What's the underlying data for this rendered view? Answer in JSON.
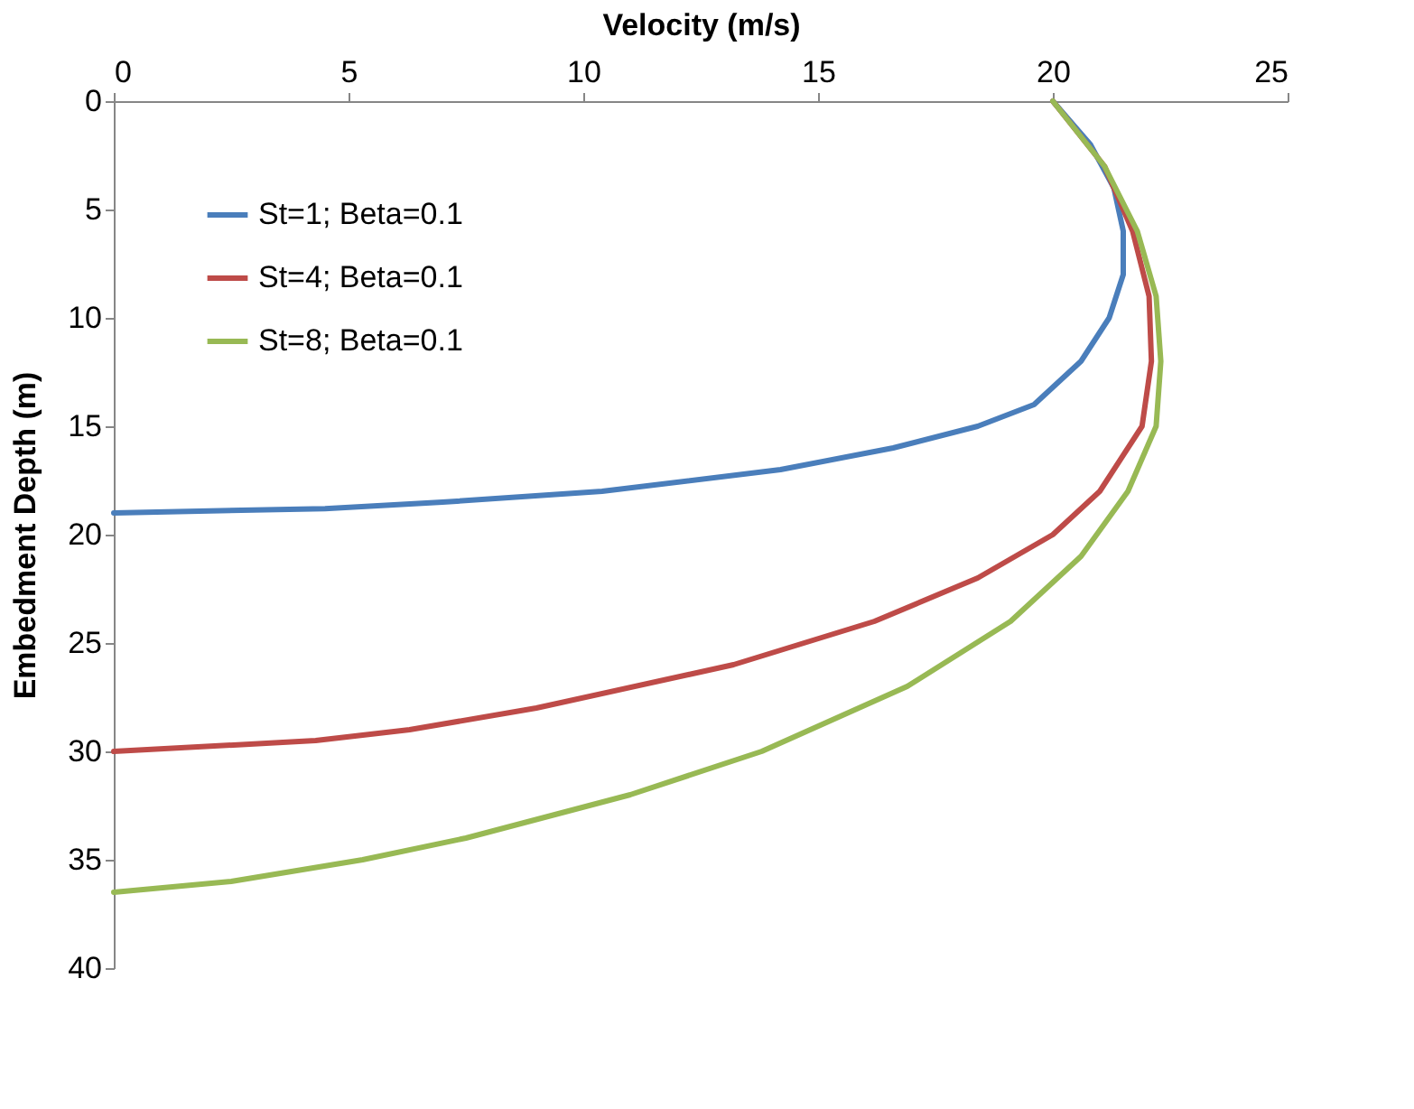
{
  "chart_data": {
    "type": "line",
    "xlabel": "Velocity (m/s)",
    "ylabel": "Embedment Depth (m)",
    "xlim": [
      0,
      25
    ],
    "xticks": [
      0,
      5,
      10,
      15,
      20,
      25
    ],
    "ylim": [
      40,
      0
    ],
    "yticks": [
      0,
      5,
      10,
      15,
      20,
      25,
      30,
      35,
      40
    ],
    "grid": false,
    "legend": "top left",
    "marker": "none",
    "line_style": "solid",
    "series": [
      {
        "name": "St=1; Beta=0.1",
        "color": "#4a7ebb",
        "x": [
          20,
          20.8,
          21.3,
          21.5,
          21.5,
          21.2,
          20.6,
          19.6,
          18.4,
          16.6,
          14.2,
          10.4,
          7,
          4.5,
          0
        ],
        "values": [
          0,
          2,
          4,
          6,
          8,
          10,
          12,
          14,
          15,
          16,
          17,
          18,
          18.5,
          18.8,
          19
        ]
      },
      {
        "name": "St=4; Beta=0.1",
        "color": "#be4b48",
        "x": [
          20,
          21.1,
          21.7,
          22.05,
          22.1,
          21.9,
          21.0,
          20.0,
          18.4,
          16.2,
          13.2,
          9,
          6.3,
          4.3,
          0
        ],
        "values": [
          0,
          3,
          6,
          9,
          12,
          15,
          18,
          20,
          22,
          24,
          26,
          28,
          29,
          29.5,
          30
        ]
      },
      {
        "name": "St=8; Beta=0.1",
        "color": "#98b954",
        "x": [
          20,
          21.1,
          21.8,
          22.2,
          22.3,
          22.2,
          21.6,
          20.6,
          19.1,
          16.9,
          13.8,
          11,
          7.5,
          5.3,
          2.5,
          0
        ],
        "values": [
          0,
          3,
          6,
          9,
          12,
          15,
          18,
          21,
          24,
          27,
          30,
          32,
          34,
          35,
          36,
          36.5
        ]
      }
    ]
  }
}
